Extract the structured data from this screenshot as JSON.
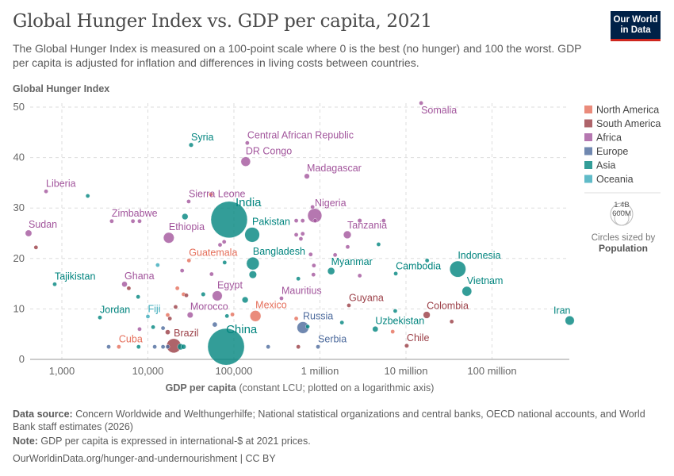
{
  "header": {
    "title": "Global Hunger Index vs. GDP per capita, 2021",
    "subtitle": "The Global Hunger Index is measured on a 100-point scale where 0 is the best (no hunger) and 100 the worst. GDP per capita is adjusted for inflation and differences in living costs between countries.",
    "logo_line1": "Our World",
    "logo_line2": "in Data"
  },
  "footer": {
    "source_label": "Data source:",
    "source_text": " Concern Worldwide and Welthungerhilfe; National statistical organizations and central banks, OECD national accounts, and World Bank staff estimates (2026)",
    "note_label": "Note:",
    "note_text": " GDP per capita is expressed in international-$ at 2021 prices.",
    "url": "OurWorldinData.org/hunger-and-undernourishment | CC BY"
  },
  "chart_data": {
    "type": "scatter",
    "title": "Global Hunger Index vs. GDP per capita, 2021",
    "ylabel": "Global Hunger Index",
    "xlabel_bold": "GDP per capita",
    "xlabel_rest": " (constant LCU; plotted on a logarithmic axis)",
    "x_scale": "log",
    "xlim": [
      400,
      800000000
    ],
    "ylim": [
      0,
      50
    ],
    "grid": true,
    "x_ticks": [
      {
        "v": 1000,
        "label": "1,000"
      },
      {
        "v": 10000,
        "label": "10,000"
      },
      {
        "v": 100000,
        "label": "100,000"
      },
      {
        "v": 1000000,
        "label": "1 million"
      },
      {
        "v": 10000000,
        "label": "10 million"
      },
      {
        "v": 100000000,
        "label": "100 million"
      }
    ],
    "y_ticks": [
      {
        "v": 0,
        "label": "0"
      },
      {
        "v": 10,
        "label": "10"
      },
      {
        "v": 20,
        "label": "20"
      },
      {
        "v": 30,
        "label": "30"
      },
      {
        "v": 40,
        "label": "40"
      },
      {
        "v": 50,
        "label": "50"
      }
    ],
    "legend_position": "right",
    "regions": [
      {
        "name": "North America",
        "color": "#E56E5A"
      },
      {
        "name": "South America",
        "color": "#9A3D45"
      },
      {
        "name": "Africa",
        "color": "#A2559C"
      },
      {
        "name": "Europe",
        "color": "#4C6A9C"
      },
      {
        "name": "Asia",
        "color": "#00847E"
      },
      {
        "name": "Oceania",
        "color": "#38AABA"
      }
    ],
    "size_legend": {
      "large": "1.4B",
      "small": "600M",
      "caption": "Circles sized by",
      "variable": "Population"
    },
    "points": [
      {
        "label": "Somalia",
        "region": "Africa",
        "x": 15000000,
        "y": 50.8,
        "pop": 17
      },
      {
        "label": "Central African Republic",
        "region": "Africa",
        "x": 143000,
        "y": 42.9,
        "pop": 5.5
      },
      {
        "label": "DR Congo",
        "region": "Africa",
        "x": 137000,
        "y": 39.2,
        "pop": 95
      },
      {
        "label": "Madagascar",
        "region": "Africa",
        "x": 705000,
        "y": 36.3,
        "pop": 29
      },
      {
        "label": "Syria",
        "region": "Asia",
        "x": 31800,
        "y": 42.5,
        "pop": 21
      },
      {
        "label": "Liberia",
        "region": "Africa",
        "x": 655,
        "y": 33.3,
        "pop": 5
      },
      {
        "label": "Sierra Leone",
        "region": "Africa",
        "x": 29800,
        "y": 31.3,
        "pop": 8
      },
      {
        "label": "Zimbabwe",
        "region": "Africa",
        "x": 3800,
        "y": 27.4,
        "pop": 16
      },
      {
        "label": "Sudan",
        "region": "Africa",
        "x": 410,
        "y": 25.0,
        "pop": 45
      },
      {
        "label": "India",
        "region": "Asia",
        "x": 88000,
        "y": 27.7,
        "pop": 1400,
        "big": true
      },
      {
        "label": "Pakistan",
        "region": "Asia",
        "x": 163000,
        "y": 24.7,
        "pop": 230
      },
      {
        "label": "Ethiopia",
        "region": "Africa",
        "x": 17500,
        "y": 24.1,
        "pop": 120
      },
      {
        "label": "Nigeria",
        "region": "Africa",
        "x": 870000,
        "y": 28.5,
        "pop": 210
      },
      {
        "label": "Tanzania",
        "region": "Africa",
        "x": 2080000,
        "y": 24.7,
        "pop": 63
      },
      {
        "label": "Guatemala",
        "region": "North America",
        "x": 30000,
        "y": 19.6,
        "pop": 17
      },
      {
        "label": "Bangladesh",
        "region": "Asia",
        "x": 166000,
        "y": 19.0,
        "pop": 170
      },
      {
        "label": "Myanmar",
        "region": "Asia",
        "x": 1350000,
        "y": 17.5,
        "pop": 54
      },
      {
        "label": "Cambodia",
        "region": "Asia",
        "x": 7600000,
        "y": 17.0,
        "pop": 17
      },
      {
        "label": "Indonesia",
        "region": "Asia",
        "x": 40000000,
        "y": 17.9,
        "pop": 275
      },
      {
        "label": "Vietnam",
        "region": "Asia",
        "x": 51000000,
        "y": 13.5,
        "pop": 98
      },
      {
        "label": "Tajikistan",
        "region": "Asia",
        "x": 826,
        "y": 14.9,
        "pop": 10
      },
      {
        "label": "Ghana",
        "region": "Africa",
        "x": 5350,
        "y": 14.9,
        "pop": 32
      },
      {
        "label": "Egypt",
        "region": "Africa",
        "x": 64000,
        "y": 12.6,
        "pop": 105
      },
      {
        "label": "Mauritius",
        "region": "Africa",
        "x": 357000,
        "y": 12.1,
        "pop": 1.3
      },
      {
        "label": "Guyana",
        "region": "South America",
        "x": 2170000,
        "y": 10.7,
        "pop": 0.8
      },
      {
        "label": "Colombia",
        "region": "South America",
        "x": 17400000,
        "y": 8.8,
        "pop": 51
      },
      {
        "label": "Iran",
        "region": "Asia",
        "x": 800000000,
        "y": 7.7,
        "pop": 88,
        "anchor": "end"
      },
      {
        "label": "Jordan",
        "region": "Asia",
        "x": 2770,
        "y": 8.3,
        "pop": 11
      },
      {
        "label": "Fiji",
        "region": "Oceania",
        "x": 10000,
        "y": 8.5,
        "pop": 0.9
      },
      {
        "label": "Morocco",
        "region": "Africa",
        "x": 31000,
        "y": 8.8,
        "pop": 37
      },
      {
        "label": "Mexico",
        "region": "North America",
        "x": 178000,
        "y": 8.6,
        "pop": 127
      },
      {
        "label": "Russia",
        "region": "Europe",
        "x": 634000,
        "y": 6.3,
        "pop": 145
      },
      {
        "label": "Uzbekistan",
        "region": "Asia",
        "x": 4400000,
        "y": 6.0,
        "pop": 34
      },
      {
        "label": "China",
        "region": "Asia",
        "x": 81000,
        "y": 2.5,
        "pop": 1410,
        "big": true
      },
      {
        "label": "Brazil",
        "region": "South America",
        "x": 20000,
        "y": 2.7,
        "pop": 214
      },
      {
        "label": "Cuba",
        "region": "North America",
        "x": 4600,
        "y": 2.5,
        "pop": 11
      },
      {
        "label": "Serbia",
        "region": "Europe",
        "x": 949000,
        "y": 2.5,
        "pop": 7
      },
      {
        "label": "Chile",
        "region": "South America",
        "x": 10200000,
        "y": 2.7,
        "pop": 19
      },
      {
        "region": "Asia",
        "x": 2000,
        "y": 32.4
      },
      {
        "region": "North America",
        "x": 54000,
        "y": 32.7
      },
      {
        "region": "Asia",
        "x": 27000,
        "y": 28.3,
        "pop": 40
      },
      {
        "region": "Africa",
        "x": 6700,
        "y": 27.4
      },
      {
        "region": "Africa",
        "x": 8000,
        "y": 27.4
      },
      {
        "region": "South America",
        "x": 500,
        "y": 22.2
      },
      {
        "region": "Africa",
        "x": 69000,
        "y": 22.7
      },
      {
        "region": "Africa",
        "x": 77000,
        "y": 23.3
      },
      {
        "region": "Oceania",
        "x": 13000,
        "y": 18.7
      },
      {
        "region": "Asia",
        "x": 78000,
        "y": 19.2
      },
      {
        "region": "Africa",
        "x": 25000,
        "y": 17.6
      },
      {
        "region": "Africa",
        "x": 55000,
        "y": 16.9
      },
      {
        "region": "Asia",
        "x": 166000,
        "y": 16.8,
        "pop": 60
      },
      {
        "region": "South America",
        "x": 6000,
        "y": 14.1
      },
      {
        "region": "Asia",
        "x": 7700,
        "y": 12.4
      },
      {
        "region": "North America",
        "x": 22000,
        "y": 14.1
      },
      {
        "region": "North America",
        "x": 26000,
        "y": 12.9
      },
      {
        "region": "South America",
        "x": 28000,
        "y": 12.7
      },
      {
        "region": "Asia",
        "x": 44000,
        "y": 12.9,
        "pop": 20
      },
      {
        "region": "Asia",
        "x": 135000,
        "y": 11.8,
        "pop": 40
      },
      {
        "region": "South America",
        "x": 21000,
        "y": 10.4
      },
      {
        "region": "North America",
        "x": 17000,
        "y": 8.8
      },
      {
        "region": "South America",
        "x": 18000,
        "y": 8.1,
        "pop": 15
      },
      {
        "region": "Asia",
        "x": 83000,
        "y": 8.6
      },
      {
        "region": "North America",
        "x": 96000,
        "y": 8.9
      },
      {
        "region": "Africa",
        "x": 8000,
        "y": 6.0
      },
      {
        "region": "Asia",
        "x": 11500,
        "y": 6.4
      },
      {
        "region": "Europe",
        "x": 15000,
        "y": 6.2
      },
      {
        "region": "South America",
        "x": 17000,
        "y": 5.4,
        "pop": 25
      },
      {
        "region": "Europe",
        "x": 60000,
        "y": 6.9,
        "pop": 25
      },
      {
        "region": "Africa",
        "x": 880000,
        "y": 27.5
      },
      {
        "region": "Africa",
        "x": 530000,
        "y": 27.5
      },
      {
        "region": "Africa",
        "x": 630000,
        "y": 27.5
      },
      {
        "region": "Africa",
        "x": 820000,
        "y": 30.2
      },
      {
        "region": "Africa",
        "x": 2900000,
        "y": 27.5,
        "pop": 20
      },
      {
        "region": "Africa",
        "x": 5500000,
        "y": 27.5
      },
      {
        "region": "Africa",
        "x": 530000,
        "y": 24.7
      },
      {
        "region": "Africa",
        "x": 630000,
        "y": 24.9
      },
      {
        "region": "Africa",
        "x": 600000,
        "y": 23.9
      },
      {
        "region": "Asia",
        "x": 4800000,
        "y": 22.8,
        "pop": 15
      },
      {
        "region": "Africa",
        "x": 780000,
        "y": 20.8
      },
      {
        "region": "Africa",
        "x": 1500000,
        "y": 20.7
      },
      {
        "region": "Africa",
        "x": 2100000,
        "y": 22.3,
        "pop": 8
      },
      {
        "region": "Africa",
        "x": 850000,
        "y": 18.6
      },
      {
        "region": "Africa",
        "x": 840000,
        "y": 16.8
      },
      {
        "region": "Africa",
        "x": 2900000,
        "y": 16.6
      },
      {
        "region": "Asia",
        "x": 560000,
        "y": 16.0
      },
      {
        "region": "Asia",
        "x": 17600000,
        "y": 19.6
      },
      {
        "region": "Asia",
        "x": 7500000,
        "y": 9.6
      },
      {
        "region": "Asia",
        "x": 1800000,
        "y": 7.3
      },
      {
        "region": "North America",
        "x": 530000,
        "y": 8.1
      },
      {
        "region": "South America",
        "x": 34000000,
        "y": 7.5
      },
      {
        "region": "North America",
        "x": 7000000,
        "y": 5.5
      },
      {
        "region": "Asia",
        "x": 720000,
        "y": 6.5
      },
      {
        "region": "South America",
        "x": 560000,
        "y": 2.5
      },
      {
        "region": "Europe",
        "x": 3500,
        "y": 2.5
      },
      {
        "region": "Asia",
        "x": 7800,
        "y": 2.5
      },
      {
        "region": "Europe",
        "x": 12000,
        "y": 2.5
      },
      {
        "region": "Europe",
        "x": 15000,
        "y": 2.5
      },
      {
        "region": "Europe",
        "x": 17000,
        "y": 2.5
      },
      {
        "region": "Asia",
        "x": 24000,
        "y": 2.5,
        "pop": 40
      },
      {
        "region": "Asia",
        "x": 26000,
        "y": 2.5,
        "pop": 25
      },
      {
        "region": "Europe",
        "x": 250000,
        "y": 2.5
      }
    ]
  }
}
